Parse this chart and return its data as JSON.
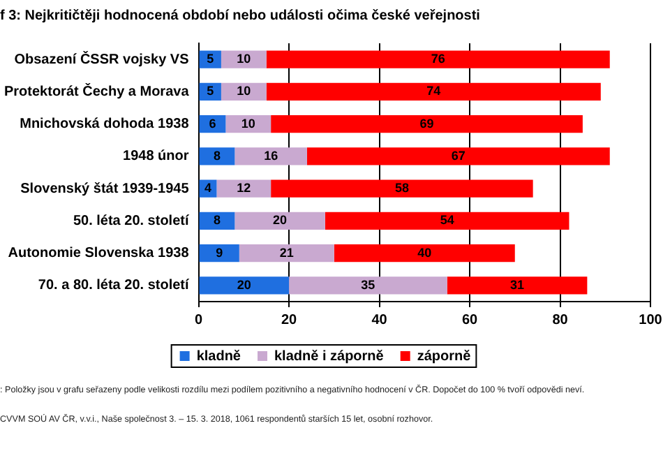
{
  "chart_data": {
    "type": "bar",
    "orientation": "horizontal",
    "stacked": true,
    "title": "f 3: Nejkritičtěji hodnocená období nebo události očima české veřejnosti",
    "categories": [
      "Obsazení ČSSR vojsky VS",
      "Protektorát Čechy a Morava",
      "Mnichovská dohoda 1938",
      "1948 únor",
      "Slovenský štát 1939-1945",
      "50. léta 20. století",
      "Autonomie Slovenska 1938",
      "70. a 80. léta 20. století"
    ],
    "series": [
      {
        "name": "kladně",
        "color": "#1f6fe0",
        "values": [
          5,
          5,
          6,
          8,
          4,
          8,
          9,
          20
        ]
      },
      {
        "name": "kladně i záporně",
        "color": "#c9a9d0",
        "values": [
          10,
          10,
          10,
          16,
          12,
          20,
          21,
          35
        ]
      },
      {
        "name": "záporně",
        "color": "#ff0000",
        "values": [
          76,
          74,
          69,
          67,
          58,
          54,
          40,
          31
        ]
      }
    ],
    "xlim": [
      0,
      100
    ],
    "xticks": [
      0,
      20,
      40,
      60,
      80,
      100
    ],
    "grid": "x",
    "legend": "bottom",
    "data_labels": true,
    "annotations": [
      ": Položky jsou v grafu seřazeny podle velikosti rozdílu mezi podílem pozitivního a negativního hodnocení v ČR. Dopočet do 100 % tvoří odpovědi neví.",
      "CVVM SOÚ AV ČR, v.v.i., Naše společnost 3. – 15. 3. 2018, 1061 respondentů starších 15 let, osobní rozhovor."
    ]
  }
}
